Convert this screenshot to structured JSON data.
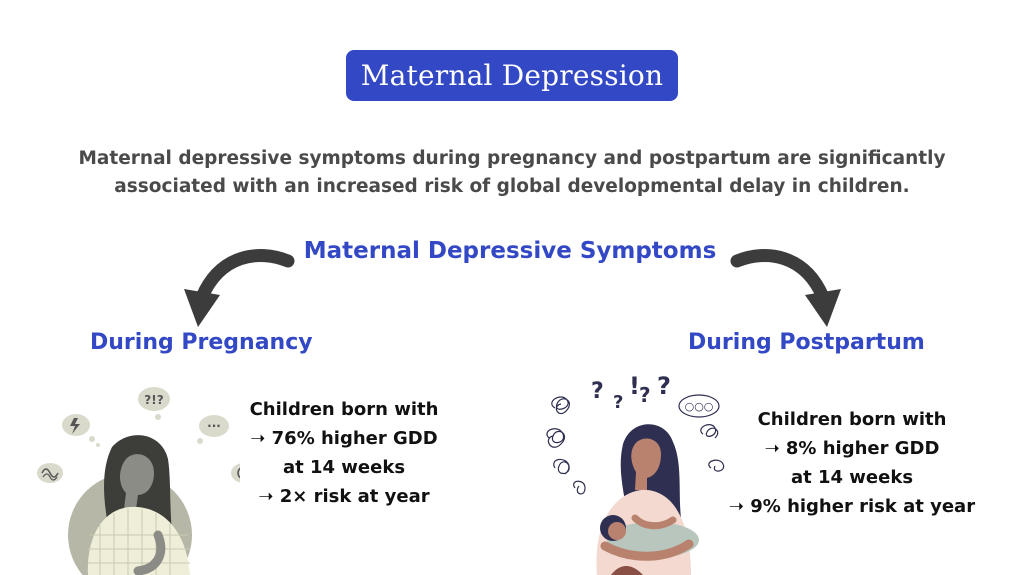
{
  "title": "Maternal Depression",
  "subtitle": {
    "line1": "Maternal depressive symptoms during pregnancy and postpartum are significantly",
    "line2": "associated with an increased risk of global developmental delay in children."
  },
  "center_heading": "Maternal Depressive Symptoms",
  "left": {
    "heading": "During Pregnancy",
    "lines": [
      "Children born with",
      "➝ 76% higher GDD",
      "at 14 weeks",
      "➝ 2× risk at year"
    ],
    "bubble_text": "?!?",
    "colors": {
      "circle": "#b7b7a8",
      "hair": "#3d3d3a",
      "skin": "#8c8c86",
      "top": "#efeed8"
    }
  },
  "right": {
    "heading": "During Postpartum",
    "lines": [
      "Children born with",
      "➝ 8% higher GDD",
      "at 14 weeks",
      "➝ 9% higher risk at year"
    ],
    "colors": {
      "hair": "#2f2f52",
      "skin": "#b8826e",
      "top": "#f3d9cf",
      "baby_blanket": "#b9c6bd"
    }
  },
  "colors": {
    "accent": "#3348c5",
    "arrow": "#3c3c3c",
    "body_text": "#4a4a4a"
  }
}
